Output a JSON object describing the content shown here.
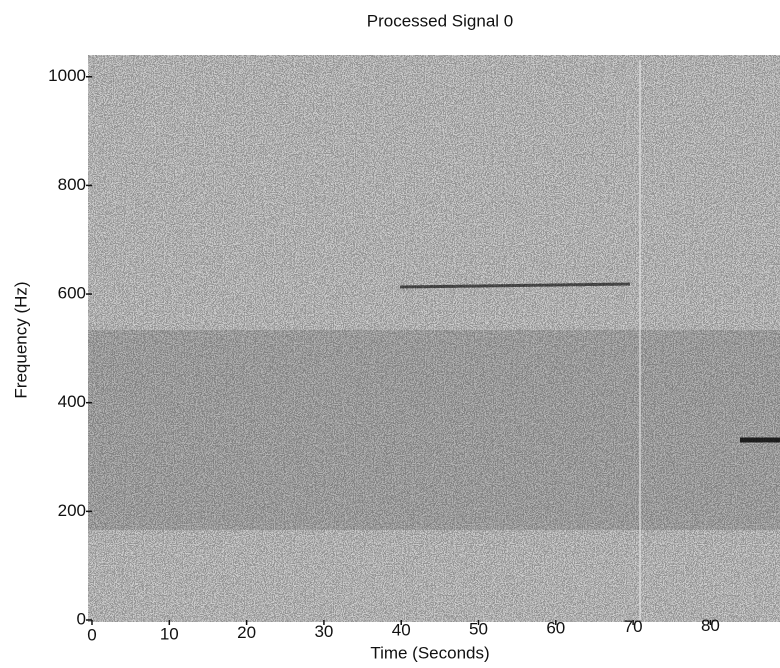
{
  "chart_data": {
    "type": "spectrogram",
    "title": "Processed Signal 0",
    "x_label": "Time (Seconds)",
    "y_label": "Frequency (Hz)",
    "xlim": [
      0,
      89
    ],
    "xticks": [
      0,
      10,
      20,
      30,
      40,
      50,
      60,
      70,
      80
    ],
    "ylim": [
      0,
      1040
    ],
    "yticks": [
      0,
      200,
      400,
      600,
      800,
      1000
    ]
  }
}
